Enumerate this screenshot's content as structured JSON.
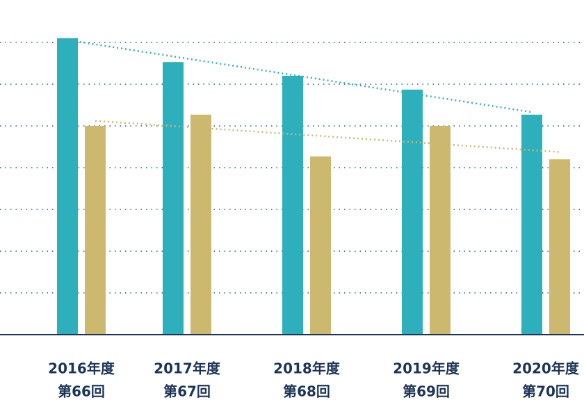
{
  "chart_data": {
    "type": "bar",
    "categories": [
      [
        "2016年度",
        "第66回"
      ],
      [
        "2017年度",
        "第67回"
      ],
      [
        "2018年度",
        "第68回"
      ],
      [
        "2019年度",
        "第69回"
      ],
      [
        "2020年度",
        "第70回"
      ]
    ],
    "series": [
      {
        "color": "#2eb0bc",
        "values": [
          7.1,
          6.53,
          6.2,
          5.87,
          5.27
        ]
      },
      {
        "color": "#cdb870",
        "values": [
          5.0,
          5.27,
          4.27,
          5.0,
          4.2
        ]
      }
    ],
    "ylim": [
      0,
      8
    ],
    "yticks": [
      1,
      2,
      3,
      4,
      5,
      6,
      7
    ],
    "grid": true,
    "trendline": true
  }
}
